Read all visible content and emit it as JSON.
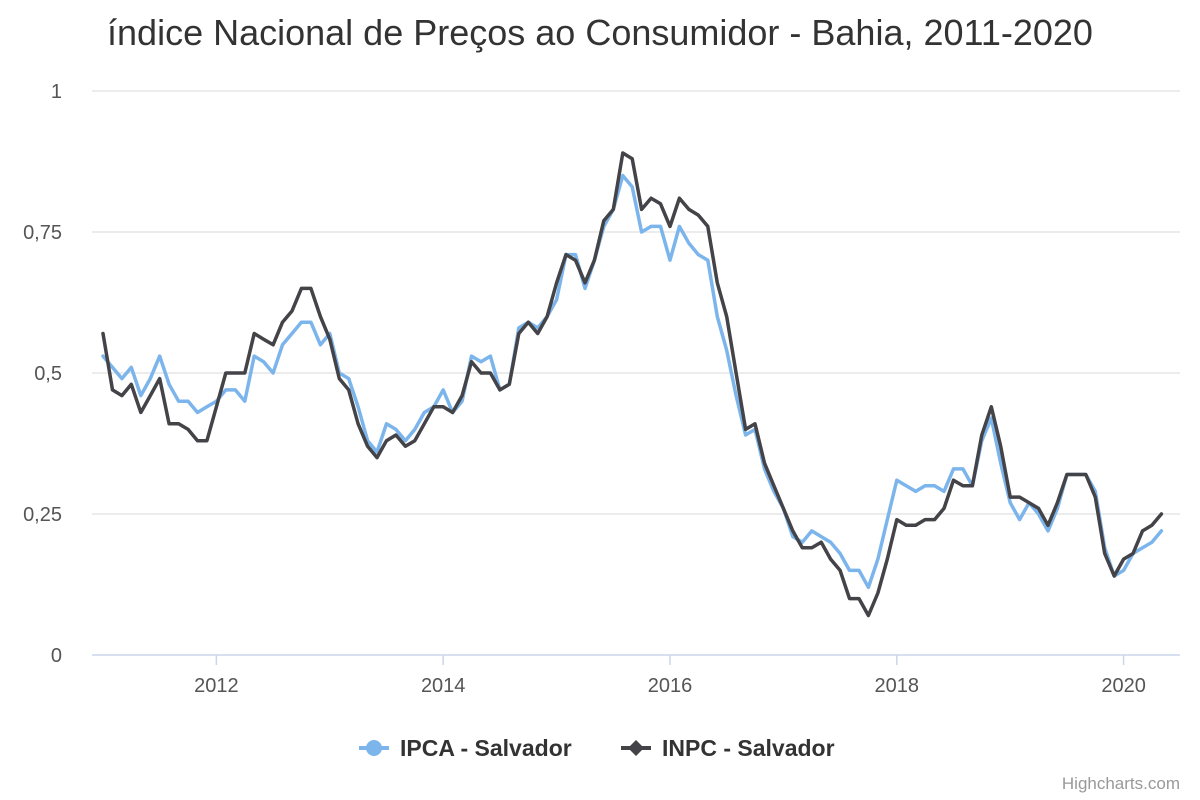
{
  "chart_data": {
    "type": "line",
    "title": "índice Nacional de Preços ao Consumidor - Bahia, 2011-2020",
    "xlabel": "",
    "ylabel": "",
    "ylim": [
      0,
      1
    ],
    "y_ticks": [
      "0",
      "0,25",
      "0,5",
      "0,75",
      "1"
    ],
    "y_tick_values": [
      0,
      0.25,
      0.5,
      0.75,
      1
    ],
    "x_ticks": [
      "2012",
      "2014",
      "2016",
      "2018",
      "2020"
    ],
    "x_start": "2011-01",
    "grid": true,
    "legend_position": "bottom",
    "series": [
      {
        "name": "IPCA - Salvador",
        "color": "#7cb5ec",
        "marker": "circle",
        "values": [
          0.53,
          0.51,
          0.49,
          0.51,
          0.46,
          0.49,
          0.53,
          0.48,
          0.45,
          0.45,
          0.43,
          0.44,
          0.45,
          0.47,
          0.47,
          0.45,
          0.53,
          0.52,
          0.5,
          0.55,
          0.57,
          0.59,
          0.59,
          0.55,
          0.57,
          0.5,
          0.49,
          0.44,
          0.38,
          0.36,
          0.41,
          0.4,
          0.38,
          0.4,
          0.43,
          0.44,
          0.47,
          0.43,
          0.45,
          0.53,
          0.52,
          0.53,
          0.47,
          0.48,
          0.58,
          0.59,
          0.58,
          0.6,
          0.63,
          0.71,
          0.71,
          0.65,
          0.7,
          0.76,
          0.79,
          0.85,
          0.83,
          0.75,
          0.76,
          0.76,
          0.7,
          0.76,
          0.73,
          0.71,
          0.7,
          0.6,
          0.54,
          0.46,
          0.39,
          0.4,
          0.33,
          0.29,
          0.26,
          0.21,
          0.2,
          0.22,
          0.21,
          0.2,
          0.18,
          0.15,
          0.15,
          0.12,
          0.17,
          0.24,
          0.31,
          0.3,
          0.29,
          0.3,
          0.3,
          0.29,
          0.33,
          0.33,
          0.3,
          0.38,
          0.42,
          0.34,
          0.27,
          0.24,
          0.27,
          0.25,
          0.22,
          0.26,
          0.32,
          0.32,
          0.32,
          0.29,
          0.19,
          0.14,
          0.15,
          0.18,
          0.19,
          0.2,
          0.22
        ]
      },
      {
        "name": "INPC - Salvador",
        "color": "#434348",
        "marker": "diamond",
        "values": [
          0.57,
          0.47,
          0.46,
          0.48,
          0.43,
          0.46,
          0.49,
          0.41,
          0.41,
          0.4,
          0.38,
          0.38,
          0.44,
          0.5,
          0.5,
          0.5,
          0.57,
          0.56,
          0.55,
          0.59,
          0.61,
          0.65,
          0.65,
          0.6,
          0.56,
          0.49,
          0.47,
          0.41,
          0.37,
          0.35,
          0.38,
          0.39,
          0.37,
          0.38,
          0.41,
          0.44,
          0.44,
          0.43,
          0.46,
          0.52,
          0.5,
          0.5,
          0.47,
          0.48,
          0.57,
          0.59,
          0.57,
          0.6,
          0.66,
          0.71,
          0.7,
          0.66,
          0.7,
          0.77,
          0.79,
          0.89,
          0.88,
          0.79,
          0.81,
          0.8,
          0.76,
          0.81,
          0.79,
          0.78,
          0.76,
          0.66,
          0.6,
          0.5,
          0.4,
          0.41,
          0.34,
          0.3,
          0.26,
          0.22,
          0.19,
          0.19,
          0.2,
          0.17,
          0.15,
          0.1,
          0.1,
          0.07,
          0.11,
          0.17,
          0.24,
          0.23,
          0.23,
          0.24,
          0.24,
          0.26,
          0.31,
          0.3,
          0.3,
          0.39,
          0.44,
          0.37,
          0.28,
          0.28,
          0.27,
          0.26,
          0.23,
          0.27,
          0.32,
          0.32,
          0.32,
          0.28,
          0.18,
          0.14,
          0.17,
          0.18,
          0.22,
          0.23,
          0.25
        ]
      }
    ]
  },
  "credits": "Highcharts.com"
}
